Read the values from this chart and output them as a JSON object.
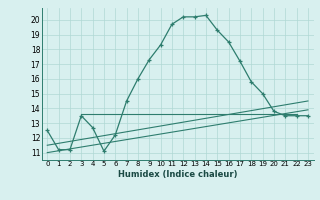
{
  "main_x": [
    0,
    1,
    2,
    3,
    4,
    5,
    6,
    7,
    8,
    9,
    10,
    11,
    12,
    13,
    14,
    15,
    16,
    17,
    18,
    19,
    20,
    21,
    22,
    23
  ],
  "main_y": [
    12.5,
    11.2,
    11.2,
    13.5,
    12.7,
    11.1,
    12.2,
    14.5,
    16.0,
    17.3,
    18.3,
    19.7,
    20.2,
    20.2,
    20.3,
    19.3,
    18.5,
    17.2,
    15.8,
    15.0,
    13.8,
    13.5,
    13.5,
    13.5
  ],
  "line1_x": [
    0,
    23
  ],
  "line1_y": [
    11.5,
    14.5
  ],
  "line2_x": [
    0,
    23
  ],
  "line2_y": [
    11.0,
    13.9
  ],
  "hline_y": 13.6,
  "hline_x": [
    3,
    22
  ],
  "color_main": "#2e7d6e",
  "bg_color": "#d8f0ef",
  "grid_color": "#b0d8d4",
  "xlabel": "Humidex (Indice chaleur)",
  "xlim": [
    -0.5,
    23.5
  ],
  "ylim": [
    10.5,
    20.8
  ],
  "yticks": [
    11,
    12,
    13,
    14,
    15,
    16,
    17,
    18,
    19,
    20
  ],
  "xticks": [
    0,
    1,
    2,
    3,
    4,
    5,
    6,
    7,
    8,
    9,
    10,
    11,
    12,
    13,
    14,
    15,
    16,
    17,
    18,
    19,
    20,
    21,
    22,
    23
  ]
}
